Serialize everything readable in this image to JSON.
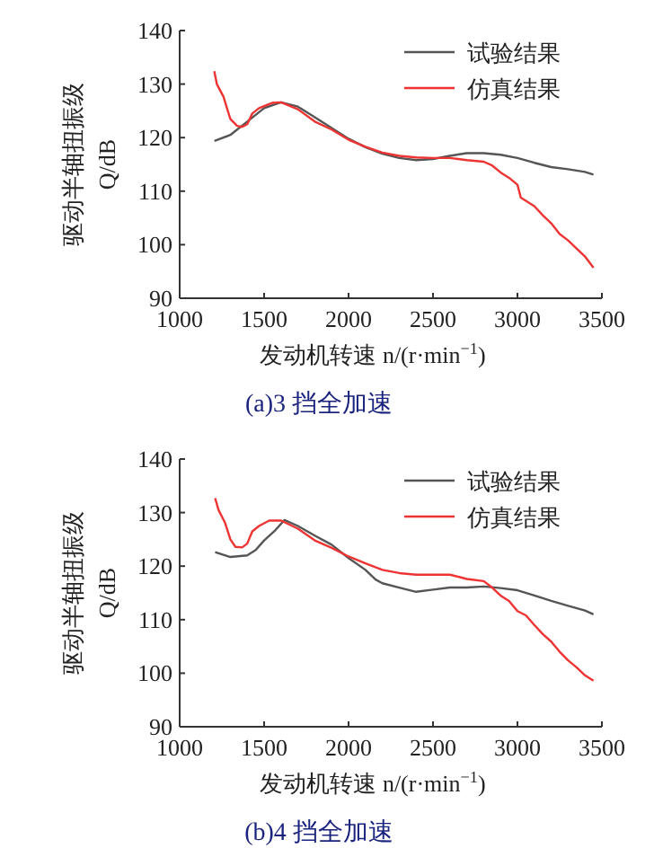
{
  "chart_data": [
    {
      "type": "line",
      "title": "(a)3 挡全加速",
      "xlabel": "发动机转速 n/(r·min$^{−1}$)",
      "ylabel": "驱动半轴扭振级 Q/dB",
      "xlim": [
        1000,
        3500
      ],
      "xticks": [
        1000,
        1500,
        2000,
        2500,
        3000,
        3500
      ],
      "ylim": [
        90,
        140
      ],
      "yticks": [
        90,
        100,
        110,
        120,
        130,
        140
      ],
      "legend": "top right",
      "grid": false,
      "marker": "none",
      "line_style": "solid",
      "series": [
        {
          "name": "试验结果",
          "color": "#555555",
          "x": [
            1206,
            1300,
            1400,
            1500,
            1600,
            1700,
            1800,
            1900,
            2000,
            2100,
            2200,
            2300,
            2400,
            2500,
            2600,
            2700,
            2800,
            2900,
            3000,
            3100,
            3200,
            3300,
            3400,
            3450
          ],
          "values": [
            119.4,
            120.5,
            123,
            125.5,
            126.6,
            125.8,
            123.8,
            121.8,
            119.8,
            118.2,
            117,
            116.2,
            115.8,
            116,
            116.6,
            117.1,
            117.1,
            116.8,
            116.2,
            115.3,
            114.5,
            114.1,
            113.6,
            113.1
          ]
        },
        {
          "name": "仿真结果",
          "color": "#ee3333",
          "x": [
            1205,
            1220,
            1260,
            1280,
            1300,
            1340,
            1370,
            1400,
            1430,
            1470,
            1550,
            1600,
            1700,
            1800,
            1900,
            2000,
            2100,
            2200,
            2300,
            2400,
            2500,
            2600,
            2700,
            2800,
            2850,
            2900,
            2950,
            3000,
            3020,
            3100,
            3150,
            3200,
            3250,
            3300,
            3350,
            3400,
            3450
          ],
          "values": [
            132.4,
            130,
            127.6,
            125.5,
            123.5,
            122.2,
            122,
            122.5,
            124.5,
            125.5,
            126.5,
            126.6,
            125.3,
            123,
            121.5,
            119.6,
            118.3,
            117.2,
            116.6,
            116.3,
            116.2,
            116.2,
            115.8,
            115.5,
            114.8,
            113.5,
            112.5,
            111.2,
            108.8,
            107.2,
            105.5,
            104,
            102,
            100.8,
            99.3,
            97.8,
            95.7
          ]
        }
      ]
    },
    {
      "type": "line",
      "title": "(b)4 挡全加速",
      "xlabel": "发动机转速 n/(r·min$^{−1}$)",
      "ylabel": "驱动半轴扭振级 Q/dB",
      "xlim": [
        1000,
        3500
      ],
      "xticks": [
        1000,
        1500,
        2000,
        2500,
        3000,
        3500
      ],
      "ylim": [
        90,
        140
      ],
      "yticks": [
        90,
        100,
        110,
        120,
        130,
        140
      ],
      "legend": "top right",
      "grid": false,
      "marker": "none",
      "line_style": "solid",
      "series": [
        {
          "name": "试验结果",
          "color": "#555555",
          "x": [
            1210,
            1300,
            1400,
            1450,
            1500,
            1560,
            1620,
            1700,
            1800,
            1900,
            2000,
            2100,
            2160,
            2200,
            2300,
            2400,
            2500,
            2600,
            2700,
            2800,
            2900,
            3000,
            3100,
            3200,
            3300,
            3400,
            3450
          ],
          "values": [
            122.6,
            121.7,
            122,
            123,
            124.8,
            126.5,
            128.6,
            127.5,
            125.7,
            124,
            121.5,
            119.3,
            117.5,
            116.8,
            116,
            115.2,
            115.6,
            116,
            116,
            116.2,
            115.9,
            115.5,
            114.5,
            113.5,
            112.6,
            111.7,
            111
          ]
        },
        {
          "name": "仿真结果",
          "color": "#ee3333",
          "x": [
            1210,
            1230,
            1270,
            1300,
            1330,
            1370,
            1400,
            1430,
            1470,
            1530,
            1600,
            1700,
            1800,
            1900,
            2000,
            2100,
            2200,
            2300,
            2400,
            2500,
            2600,
            2700,
            2800,
            2850,
            2900,
            2950,
            3000,
            3050,
            3100,
            3150,
            3200,
            3250,
            3300,
            3350,
            3400,
            3450
          ],
          "values": [
            132.7,
            130.5,
            128,
            125,
            123.6,
            123.5,
            124.2,
            126.5,
            127.5,
            128.5,
            128.5,
            127,
            124.8,
            123.4,
            121.8,
            120.5,
            119.3,
            118.7,
            118.4,
            118.4,
            118.4,
            117.6,
            117.2,
            116,
            114.5,
            113.5,
            111.6,
            110.8,
            109,
            107.3,
            105.9,
            104,
            102.4,
            101.1,
            99.6,
            98.6
          ]
        }
      ]
    }
  ]
}
